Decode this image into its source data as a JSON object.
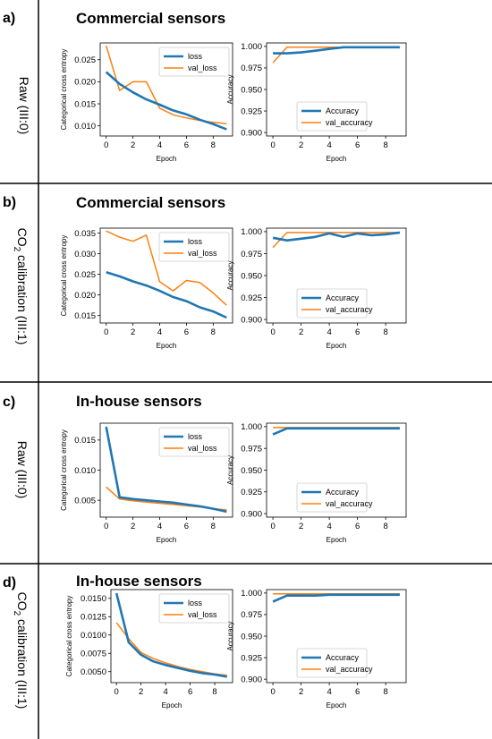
{
  "colors": {
    "loss": "#1f77b4",
    "val": "#ff7f0e"
  },
  "panels": [
    {
      "letter": "a)",
      "title": "Commercial sensors",
      "side_label": {
        "main": "Raw (III:0)",
        "sub_pre": "",
        "sub": "",
        "sub_post": ""
      }
    },
    {
      "letter": "b)",
      "title": "Commercial sensors",
      "side_label": {
        "main": "",
        "sub_pre": "CO",
        "sub": "2",
        "sub_post": " calibration  (III:1)"
      }
    },
    {
      "letter": "c)",
      "title": "In-house sensors",
      "side_label": {
        "main": "Raw (III:0)",
        "sub_pre": "",
        "sub": "",
        "sub_post": ""
      }
    },
    {
      "letter": "d)",
      "title": "In-house sensors",
      "side_label": {
        "main": "",
        "sub_pre": "CO",
        "sub": "2",
        "sub_post": " calibration  (III:1)"
      }
    }
  ],
  "chart_data": [
    {
      "panel": "a)",
      "type": "line",
      "xlabel": "Epoch",
      "ylabel": "Categorical cross entropy",
      "x": [
        0,
        1,
        2,
        3,
        4,
        5,
        6,
        7,
        8,
        9
      ],
      "xlim": [
        -0.45,
        9.45
      ],
      "ylim": [
        0.0077,
        0.0288
      ],
      "xticks": [
        0,
        2,
        4,
        6,
        8
      ],
      "yticks": [
        0.01,
        0.015,
        0.02,
        0.025
      ],
      "ytick_labels": [
        "0.010",
        "0.015",
        "0.020",
        "0.025"
      ],
      "legend_position": "top-right",
      "series": [
        {
          "name": "loss",
          "color": "#1f77b4",
          "values": [
            0.0222,
            0.0195,
            0.0176,
            0.016,
            0.0148,
            0.0135,
            0.0126,
            0.0114,
            0.0104,
            0.0092
          ]
        },
        {
          "name": "val_loss",
          "color": "#ff7f0e",
          "values": [
            0.0282,
            0.018,
            0.02,
            0.02,
            0.014,
            0.0125,
            0.0118,
            0.0112,
            0.0108,
            0.0105
          ]
        }
      ]
    },
    {
      "panel": "a)",
      "type": "line",
      "xlabel": "Epoch",
      "ylabel": "Accuracy",
      "x": [
        0,
        1,
        2,
        3,
        4,
        5,
        6,
        7,
        8,
        9
      ],
      "xlim": [
        -0.45,
        9.45
      ],
      "ylim": [
        0.896,
        1.004
      ],
      "xticks": [
        0,
        2,
        4,
        6,
        8
      ],
      "yticks": [
        0.9,
        0.925,
        0.95,
        0.975,
        1.0
      ],
      "ytick_labels": [
        "0.900",
        "0.925",
        "0.950",
        "0.975",
        "1.000"
      ],
      "legend_position": "bottom-right",
      "series": [
        {
          "name": "Accuracy",
          "color": "#1f77b4",
          "values": [
            0.992,
            0.992,
            0.993,
            0.995,
            0.997,
            0.999,
            0.999,
            0.999,
            0.999,
            0.999
          ]
        },
        {
          "name": "val_accuracy",
          "color": "#ff7f0e",
          "values": [
            0.981,
            0.999,
            0.999,
            0.999,
            0.999,
            0.999,
            0.999,
            0.999,
            0.999,
            0.999
          ]
        }
      ]
    },
    {
      "panel": "b)",
      "type": "line",
      "xlabel": "Epoch",
      "ylabel": "Categorical cross entropy",
      "x": [
        0,
        1,
        2,
        3,
        4,
        5,
        6,
        7,
        8,
        9
      ],
      "xlim": [
        -0.45,
        9.45
      ],
      "ylim": [
        0.0132,
        0.0362
      ],
      "xticks": [
        0,
        2,
        4,
        6,
        8
      ],
      "yticks": [
        0.015,
        0.02,
        0.025,
        0.03,
        0.035
      ],
      "ytick_labels": [
        "0.015",
        "0.020",
        "0.025",
        "0.030",
        "0.035"
      ],
      "legend_position": "top-right",
      "series": [
        {
          "name": "loss",
          "color": "#1f77b4",
          "values": [
            0.0255,
            0.0245,
            0.0233,
            0.0223,
            0.021,
            0.0195,
            0.0185,
            0.017,
            0.016,
            0.0145
          ]
        },
        {
          "name": "val_loss",
          "color": "#ff7f0e",
          "values": [
            0.0355,
            0.034,
            0.033,
            0.0345,
            0.0232,
            0.021,
            0.0235,
            0.023,
            0.0205,
            0.0175
          ]
        }
      ]
    },
    {
      "panel": "b)",
      "type": "line",
      "xlabel": "Epoch",
      "ylabel": "Accuracy",
      "x": [
        0,
        1,
        2,
        3,
        4,
        5,
        6,
        7,
        8,
        9
      ],
      "xlim": [
        -0.45,
        9.45
      ],
      "ylim": [
        0.896,
        1.004
      ],
      "xticks": [
        0,
        2,
        4,
        6,
        8
      ],
      "yticks": [
        0.9,
        0.925,
        0.95,
        0.975,
        1.0
      ],
      "ytick_labels": [
        "0.900",
        "0.925",
        "0.950",
        "0.975",
        "1.000"
      ],
      "legend_position": "bottom-right",
      "series": [
        {
          "name": "Accuracy",
          "color": "#1f77b4",
          "values": [
            0.993,
            0.99,
            0.992,
            0.994,
            0.998,
            0.994,
            0.998,
            0.996,
            0.997,
            0.999
          ]
        },
        {
          "name": "val_accuracy",
          "color": "#ff7f0e",
          "values": [
            0.982,
            0.999,
            0.999,
            0.999,
            0.999,
            0.999,
            0.999,
            0.999,
            0.999,
            0.999
          ]
        }
      ]
    },
    {
      "panel": "c)",
      "type": "line",
      "xlabel": "Epoch",
      "ylabel": "Categorical cross entropy",
      "x": [
        0,
        1,
        2,
        3,
        4,
        5,
        6,
        7,
        8,
        9
      ],
      "xlim": [
        -0.45,
        9.45
      ],
      "ylim": [
        0.0022,
        0.0178
      ],
      "xticks": [
        0,
        2,
        4,
        6,
        8
      ],
      "yticks": [
        0.005,
        0.01,
        0.015
      ],
      "ytick_labels": [
        "0.005",
        "0.010",
        "0.015"
      ],
      "legend_position": "top-right",
      "series": [
        {
          "name": "loss",
          "color": "#1f77b4",
          "values": [
            0.0172,
            0.0055,
            0.0052,
            0.005,
            0.0048,
            0.0046,
            0.0043,
            0.004,
            0.0036,
            0.0031
          ]
        },
        {
          "name": "val_loss",
          "color": "#ff7f0e",
          "values": [
            0.0072,
            0.0052,
            0.0049,
            0.0047,
            0.0045,
            0.0043,
            0.0041,
            0.0039,
            0.0036,
            0.0034
          ]
        }
      ]
    },
    {
      "panel": "c)",
      "type": "line",
      "xlabel": "Epoch",
      "ylabel": "Accuracy",
      "x": [
        0,
        1,
        2,
        3,
        4,
        5,
        6,
        7,
        8,
        9
      ],
      "xlim": [
        -0.45,
        9.45
      ],
      "ylim": [
        0.896,
        1.004
      ],
      "xticks": [
        0,
        2,
        4,
        6,
        8
      ],
      "yticks": [
        0.9,
        0.925,
        0.95,
        0.975,
        1.0
      ],
      "ytick_labels": [
        "0.900",
        "0.925",
        "0.950",
        "0.975",
        "1.000"
      ],
      "legend_position": "bottom-right",
      "series": [
        {
          "name": "Accuracy",
          "color": "#1f77b4",
          "values": [
            0.991,
            0.998,
            0.998,
            0.998,
            0.998,
            0.998,
            0.998,
            0.998,
            0.998,
            0.998
          ]
        },
        {
          "name": "val_accuracy",
          "color": "#ff7f0e",
          "values": [
            0.999,
            0.999,
            0.999,
            0.999,
            0.999,
            0.999,
            0.999,
            0.999,
            0.999,
            0.999
          ]
        }
      ]
    },
    {
      "panel": "d)",
      "type": "line",
      "xlabel": "Epoch",
      "ylabel": "Categorical cross entropy",
      "x": [
        0,
        1,
        2,
        3,
        4,
        5,
        6,
        7,
        8,
        9
      ],
      "xlim": [
        -0.45,
        9.45
      ],
      "ylim": [
        0.0035,
        0.0162
      ],
      "xticks": [
        0,
        2,
        4,
        6,
        8
      ],
      "yticks": [
        0.005,
        0.0075,
        0.01,
        0.0125,
        0.015
      ],
      "ytick_labels": [
        "0.0050",
        "0.0075",
        "0.0100",
        "0.0125",
        "0.0150"
      ],
      "legend_position": "top-right",
      "series": [
        {
          "name": "loss",
          "color": "#1f77b4",
          "values": [
            0.0157,
            0.009,
            0.0073,
            0.0064,
            0.0059,
            0.0055,
            0.0051,
            0.0048,
            0.0046,
            0.0043
          ]
        },
        {
          "name": "val_loss",
          "color": "#ff7f0e",
          "values": [
            0.0117,
            0.0095,
            0.0076,
            0.0068,
            0.0062,
            0.0057,
            0.0053,
            0.005,
            0.0047,
            0.0045
          ]
        }
      ]
    },
    {
      "panel": "d)",
      "type": "line",
      "xlabel": "Epoch",
      "ylabel": "Accuracy",
      "x": [
        0,
        1,
        2,
        3,
        4,
        5,
        6,
        7,
        8,
        9
      ],
      "xlim": [
        -0.45,
        9.45
      ],
      "ylim": [
        0.896,
        1.004
      ],
      "xticks": [
        0,
        2,
        4,
        6,
        8
      ],
      "yticks": [
        0.9,
        0.925,
        0.95,
        0.975,
        1.0
      ],
      "ytick_labels": [
        "0.900",
        "0.925",
        "0.950",
        "0.975",
        "1.000"
      ],
      "legend_position": "bottom-right",
      "series": [
        {
          "name": "Accuracy",
          "color": "#1f77b4",
          "values": [
            0.99,
            0.997,
            0.997,
            0.997,
            0.998,
            0.998,
            0.998,
            0.998,
            0.998,
            0.998
          ]
        },
        {
          "name": "val_accuracy",
          "color": "#ff7f0e",
          "values": [
            0.999,
            0.999,
            0.999,
            0.999,
            0.999,
            0.999,
            0.999,
            0.999,
            0.999,
            0.999
          ]
        }
      ]
    }
  ]
}
